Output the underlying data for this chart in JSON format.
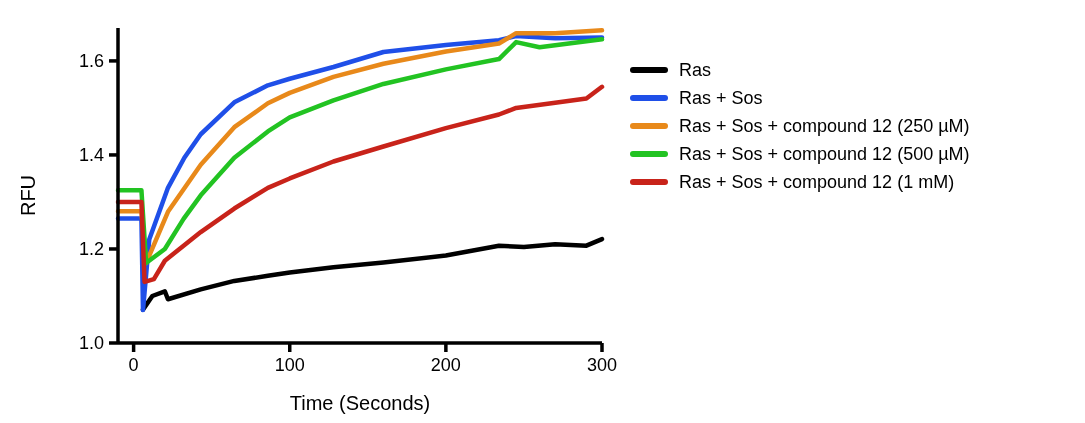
{
  "chart_data": {
    "type": "line",
    "xlabel": "Time (Seconds)",
    "ylabel": "RFU",
    "xlim": [
      -10,
      300
    ],
    "ylim": [
      1.0,
      1.67
    ],
    "xticks": [
      0,
      100,
      200,
      300
    ],
    "yticks": [
      {
        "value": 1.0,
        "label": "1.0"
      },
      {
        "value": 1.2,
        "label": "1.2"
      },
      {
        "value": 1.4,
        "label": "1.4"
      },
      {
        "value": 1.6,
        "label": "1.6"
      }
    ],
    "grid": false,
    "legend": "right",
    "marker": "none",
    "line_style": "solid",
    "series": [
      {
        "name": "Ras",
        "color": "#000000",
        "x": [
          6,
          12,
          20,
          22,
          43,
          64.5,
          86,
          100,
          128,
          160,
          200,
          234,
          250,
          270,
          290,
          300
        ],
        "values": [
          1.071,
          1.1,
          1.11,
          1.093,
          1.114,
          1.132,
          1.143,
          1.15,
          1.161,
          1.171,
          1.186,
          1.207,
          1.204,
          1.21,
          1.207,
          1.221
        ]
      },
      {
        "name": "Ras + Sos",
        "color": "#1f4fe8",
        "x": [
          -10,
          5,
          6,
          10,
          22,
          32.5,
          43,
          64.5,
          86,
          100,
          128,
          160,
          200,
          234,
          245,
          270,
          300
        ],
        "values": [
          1.265,
          1.265,
          1.07,
          1.22,
          1.33,
          1.394,
          1.444,
          1.512,
          1.548,
          1.562,
          1.587,
          1.619,
          1.634,
          1.644,
          1.653,
          1.648,
          1.65
        ]
      },
      {
        "name": "Ras + Sos + compound 12 (250 µM)",
        "color": "#e8891a",
        "x": [
          -10,
          5,
          8,
          22,
          43,
          64.5,
          86,
          100,
          128,
          160,
          200,
          234,
          245,
          270,
          300
        ],
        "values": [
          1.28,
          1.28,
          1.17,
          1.279,
          1.379,
          1.459,
          1.51,
          1.532,
          1.566,
          1.594,
          1.62,
          1.637,
          1.659,
          1.659,
          1.665
        ]
      },
      {
        "name": "Ras + Sos + compound 12 (500 µM)",
        "color": "#22c322",
        "x": [
          -10,
          5,
          8,
          20,
          32,
          43,
          64.5,
          86,
          100,
          128,
          160,
          200,
          234,
          245,
          260,
          300
        ],
        "values": [
          1.325,
          1.325,
          1.17,
          1.2,
          1.264,
          1.314,
          1.394,
          1.45,
          1.48,
          1.516,
          1.551,
          1.582,
          1.604,
          1.64,
          1.629,
          1.646
        ]
      },
      {
        "name": "Ras + Sos + compound 12 (1 mM)",
        "color": "#c8231a",
        "x": [
          -10,
          5,
          7,
          13,
          20,
          32,
          43,
          64.5,
          86,
          100,
          128,
          160,
          200,
          234,
          245,
          270,
          290,
          300
        ],
        "values": [
          1.3,
          1.3,
          1.13,
          1.136,
          1.175,
          1.207,
          1.236,
          1.286,
          1.33,
          1.35,
          1.386,
          1.418,
          1.457,
          1.486,
          1.5,
          1.511,
          1.52,
          1.545
        ]
      }
    ]
  }
}
